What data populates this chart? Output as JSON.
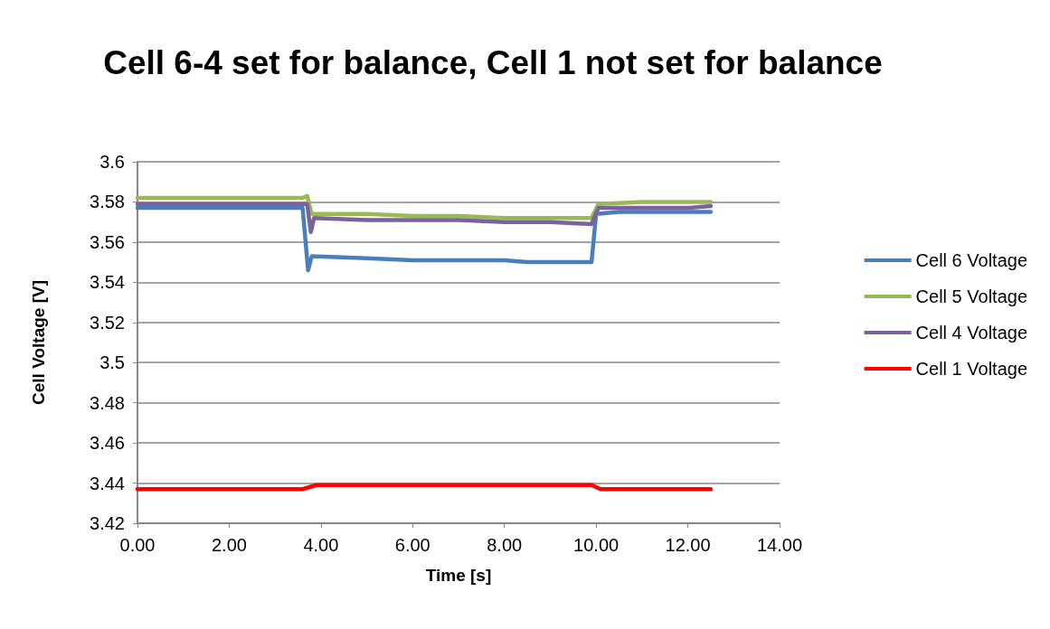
{
  "chart_data": {
    "type": "line",
    "title": "Cell 6-4 set for balance, Cell 1 not set for balance",
    "xlabel": "Time [s]",
    "ylabel": "Cell Voltage [V]",
    "xlim": [
      0,
      14
    ],
    "xticks": [
      {
        "value": 0,
        "label": "0.00"
      },
      {
        "value": 2,
        "label": "2.00"
      },
      {
        "value": 4,
        "label": "4.00"
      },
      {
        "value": 6,
        "label": "6.00"
      },
      {
        "value": 8,
        "label": "8.00"
      },
      {
        "value": 10,
        "label": "10.00"
      },
      {
        "value": 12,
        "label": "12.00"
      },
      {
        "value": 14,
        "label": "14.00"
      }
    ],
    "ylim": [
      3.42,
      3.6
    ],
    "yticks": [
      3.42,
      3.44,
      3.46,
      3.48,
      3.5,
      3.52,
      3.54,
      3.56,
      3.58,
      3.6
    ],
    "grid": "y",
    "legend": "right",
    "marker": "none",
    "line_style": "solid",
    "series": [
      {
        "name": "Cell 6 Voltage",
        "color": "#4a7ebb",
        "x": [
          0,
          0.5,
          1,
          2,
          3,
          3.6,
          3.72,
          3.8,
          5,
          6,
          7,
          8,
          8.5,
          9.3,
          9.9,
          10.0,
          10.5,
          11,
          12,
          12.5
        ],
        "values": [
          3.577,
          3.577,
          3.577,
          3.577,
          3.577,
          3.577,
          3.546,
          3.553,
          3.552,
          3.551,
          3.551,
          3.551,
          3.55,
          3.55,
          3.55,
          3.574,
          3.575,
          3.575,
          3.575,
          3.575
        ]
      },
      {
        "name": "Cell 5 Voltage",
        "color": "#98b954",
        "x": [
          0,
          1,
          2,
          3,
          3.6,
          3.7,
          3.8,
          5,
          6,
          7,
          8,
          9,
          9.9,
          10.05,
          11,
          12,
          12.5
        ],
        "values": [
          3.582,
          3.582,
          3.582,
          3.582,
          3.582,
          3.583,
          3.574,
          3.574,
          3.573,
          3.573,
          3.572,
          3.572,
          3.572,
          3.579,
          3.58,
          3.58,
          3.58
        ]
      },
      {
        "name": "Cell 4 Voltage",
        "color": "#7d60a0",
        "x": [
          0,
          1,
          2,
          3,
          3.7,
          3.78,
          3.85,
          5,
          6,
          7,
          8,
          9,
          9.9,
          10.05,
          11,
          12,
          12.5
        ],
        "values": [
          3.579,
          3.579,
          3.579,
          3.579,
          3.579,
          3.565,
          3.572,
          3.571,
          3.571,
          3.571,
          3.57,
          3.57,
          3.569,
          3.577,
          3.577,
          3.577,
          3.578
        ]
      },
      {
        "name": "Cell 1 Voltage",
        "color": "#ff0000",
        "x": [
          0,
          1,
          2,
          3,
          3.6,
          3.9,
          5,
          6,
          7,
          8,
          9,
          9.9,
          10.1,
          11,
          12,
          12.5
        ],
        "values": [
          3.437,
          3.437,
          3.437,
          3.437,
          3.437,
          3.439,
          3.439,
          3.439,
          3.439,
          3.439,
          3.439,
          3.439,
          3.437,
          3.437,
          3.437,
          3.437
        ]
      }
    ]
  }
}
